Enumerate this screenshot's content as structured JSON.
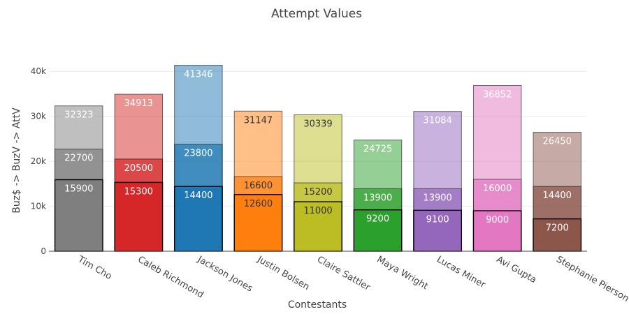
{
  "chart_data": {
    "type": "bar",
    "title": "Attempt Values",
    "xlabel": "Contestants",
    "ylabel": "Buz$ -> BuzV -> AttV",
    "ylim": [
      0,
      45000
    ],
    "yticks": [
      {
        "value": 0,
        "label": "0"
      },
      {
        "value": 10000,
        "label": "10k"
      },
      {
        "value": 20000,
        "label": "20k"
      },
      {
        "value": 30000,
        "label": "30k"
      },
      {
        "value": 40000,
        "label": "40k"
      }
    ],
    "grid": true,
    "legend": "none",
    "categories": [
      "Tim Cho",
      "Caleb Richmond",
      "Jackson Jones",
      "Justin Bolsen",
      "Claire Sattler",
      "Maya Wright",
      "Lucas Miner",
      "Avi Gupta",
      "Stephanie Pierson"
    ],
    "colors": [
      "#7f7f7f",
      "#d62728",
      "#1f77b4",
      "#ff7f0e",
      "#bcbd22",
      "#2ca02c",
      "#9467bd",
      "#e377c2",
      "#8c564b"
    ],
    "series": [
      {
        "values": [
          32323,
          34913,
          41346,
          31147,
          30339,
          24725,
          31084,
          36852,
          26450
        ]
      },
      {
        "values": [
          22700,
          20500,
          23800,
          16600,
          15200,
          13900,
          13900,
          16000,
          14400
        ]
      },
      {
        "values": [
          15900,
          15300,
          14400,
          12600,
          11000,
          9200,
          9100,
          9000,
          7200
        ]
      }
    ]
  }
}
